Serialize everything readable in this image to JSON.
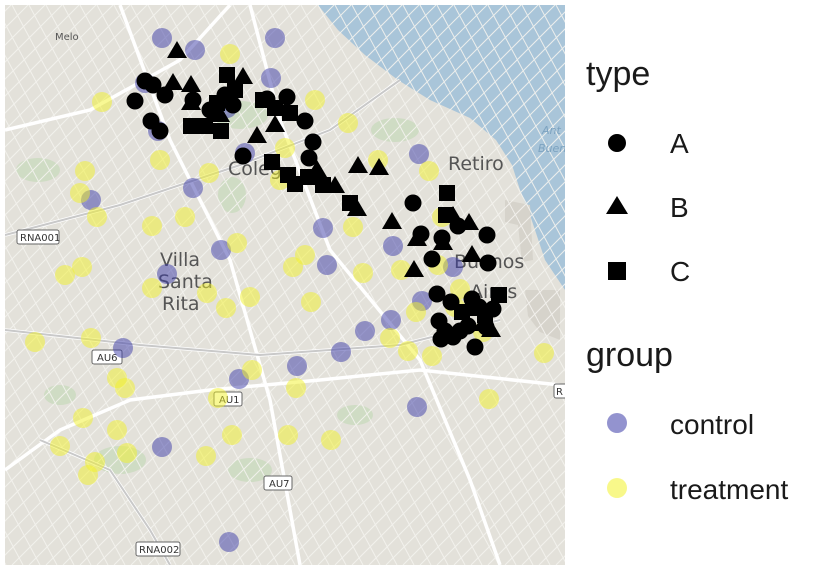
{
  "map": {
    "place_labels": [
      {
        "name": "label-villa-santa-rita",
        "lines": [
          "Villa",
          "Santa",
          "Rita"
        ]
      },
      {
        "name": "label-retiro",
        "lines": [
          "Retiro"
        ]
      },
      {
        "name": "label-buenos-aires",
        "lines": [
          "Buenos",
          "Aires"
        ]
      },
      {
        "name": "label-colegiales",
        "lines": [
          "Coleg"
        ]
      },
      {
        "name": "label-melo",
        "lines": [
          "Melo"
        ]
      }
    ],
    "water_labels": [
      "Ant",
      "Buen"
    ],
    "road_shields": [
      "RNA001",
      "AU6",
      "AU1",
      "AU7",
      "RNA002",
      "R"
    ],
    "colors": {
      "land": "#e3e1da",
      "water": "#a9c5d9",
      "park": "#cfdcc4",
      "road": "#ffffff"
    }
  },
  "legend": {
    "type_title": "type",
    "type_items": [
      {
        "label": "A",
        "shape": "circle"
      },
      {
        "label": "B",
        "shape": "triangle"
      },
      {
        "label": "C",
        "shape": "square"
      }
    ],
    "group_title": "group",
    "group_items": [
      {
        "label": "control",
        "color": "#3b3ba8"
      },
      {
        "label": "treatment",
        "color": "#f2f22a"
      }
    ]
  },
  "chart_data": {
    "type": "scatter",
    "title": "",
    "xlabel": "",
    "ylabel": "",
    "xlim": [
      0,
      560
    ],
    "ylim": [
      0,
      560
    ],
    "groups": [
      {
        "name": "control",
        "color": "#3b3ba8",
        "points": [
          [
            157,
            33
          ],
          [
            190,
            45
          ],
          [
            270,
            33
          ],
          [
            140,
            78
          ],
          [
            266,
            73
          ],
          [
            222,
            103
          ],
          [
            153,
            126
          ],
          [
            240,
            148
          ],
          [
            188,
            183
          ],
          [
            86,
            195
          ],
          [
            318,
            223
          ],
          [
            216,
            245
          ],
          [
            162,
            269
          ],
          [
            322,
            260
          ],
          [
            414,
            149
          ],
          [
            388,
            241
          ],
          [
            417,
            296
          ],
          [
            386,
            315
          ],
          [
            336,
            347
          ],
          [
            292,
            361
          ],
          [
            118,
            343
          ],
          [
            234,
            374
          ],
          [
            412,
            402
          ],
          [
            157,
            442
          ],
          [
            224,
            537
          ],
          [
            448,
            262
          ],
          [
            360,
            326
          ]
        ]
      },
      {
        "name": "treatment",
        "color": "#f2f22a",
        "points": [
          [
            225,
            49
          ],
          [
            97,
            97
          ],
          [
            310,
            95
          ],
          [
            343,
            118
          ],
          [
            280,
            143
          ],
          [
            155,
            155
          ],
          [
            80,
            166
          ],
          [
            204,
            168
          ],
          [
            275,
            175
          ],
          [
            424,
            166
          ],
          [
            373,
            155
          ],
          [
            75,
            188
          ],
          [
            92,
            212
          ],
          [
            147,
            221
          ],
          [
            180,
            212
          ],
          [
            232,
            238
          ],
          [
            348,
            222
          ],
          [
            437,
            212
          ],
          [
            300,
            250
          ],
          [
            358,
            268
          ],
          [
            288,
            262
          ],
          [
            60,
            270
          ],
          [
            77,
            262
          ],
          [
            147,
            283
          ],
          [
            202,
            288
          ],
          [
            221,
            303
          ],
          [
            245,
            292
          ],
          [
            306,
            297
          ],
          [
            396,
            265
          ],
          [
            433,
            260
          ],
          [
            411,
            307
          ],
          [
            450,
            302
          ],
          [
            385,
            333
          ],
          [
            403,
            346
          ],
          [
            427,
            351
          ],
          [
            478,
            327
          ],
          [
            30,
            337
          ],
          [
            86,
            333
          ],
          [
            247,
            365
          ],
          [
            112,
            373
          ],
          [
            120,
            383
          ],
          [
            291,
            383
          ],
          [
            213,
            393
          ],
          [
            484,
            394
          ],
          [
            78,
            413
          ],
          [
            55,
            441
          ],
          [
            90,
            457
          ],
          [
            83,
            470
          ],
          [
            112,
            425
          ],
          [
            122,
            448
          ],
          [
            227,
            430
          ],
          [
            283,
            430
          ],
          [
            326,
            435
          ],
          [
            201,
            451
          ],
          [
            539,
            348
          ],
          [
            455,
            284
          ]
        ]
      }
    ],
    "types": [
      {
        "name": "A",
        "shape": "circle",
        "points": [
          [
            140,
            76
          ],
          [
            148,
            80
          ],
          [
            130,
            96
          ],
          [
            160,
            90
          ],
          [
            188,
            95
          ],
          [
            205,
            105
          ],
          [
            220,
            90
          ],
          [
            228,
            100
          ],
          [
            262,
            94
          ],
          [
            282,
            92
          ],
          [
            300,
            116
          ],
          [
            308,
            137
          ],
          [
            304,
            153
          ],
          [
            238,
            151
          ],
          [
            146,
            116
          ],
          [
            155,
            126
          ],
          [
            408,
            198
          ],
          [
            416,
            229
          ],
          [
            427,
            254
          ],
          [
            437,
            233
          ],
          [
            453,
            221
          ],
          [
            482,
            230
          ],
          [
            483,
            258
          ],
          [
            432,
            289
          ],
          [
            446,
            297
          ],
          [
            467,
            294
          ],
          [
            474,
            302
          ],
          [
            488,
            304
          ],
          [
            434,
            316
          ],
          [
            440,
            326
          ],
          [
            448,
            332
          ],
          [
            455,
            326
          ],
          [
            463,
            321
          ],
          [
            470,
            342
          ],
          [
            481,
            322
          ],
          [
            436,
            334
          ]
        ]
      },
      {
        "name": "B",
        "shape": "triangle",
        "points": [
          [
            172,
            46
          ],
          [
            168,
            78
          ],
          [
            186,
            80
          ],
          [
            186,
            98
          ],
          [
            215,
            110
          ],
          [
            238,
            72
          ],
          [
            252,
            131
          ],
          [
            270,
            120
          ],
          [
            312,
            165
          ],
          [
            353,
            161
          ],
          [
            374,
            163
          ],
          [
            330,
            181
          ],
          [
            352,
            204
          ],
          [
            387,
            217
          ],
          [
            412,
            234
          ],
          [
            438,
            238
          ],
          [
            448,
            211
          ],
          [
            464,
            218
          ],
          [
            467,
            250
          ],
          [
            409,
            265
          ],
          [
            486,
            325
          ],
          [
            478,
            319
          ]
        ]
      },
      {
        "name": "C",
        "shape": "square",
        "points": [
          [
            222,
            70
          ],
          [
            230,
            85
          ],
          [
            212,
            98
          ],
          [
            186,
            121
          ],
          [
            200,
            121
          ],
          [
            216,
            126
          ],
          [
            258,
            95
          ],
          [
            270,
            103
          ],
          [
            285,
            108
          ],
          [
            267,
            157
          ],
          [
            283,
            170
          ],
          [
            290,
            179
          ],
          [
            303,
            172
          ],
          [
            318,
            180
          ],
          [
            345,
            198
          ],
          [
            442,
            188
          ],
          [
            441,
            210
          ],
          [
            494,
            290
          ],
          [
            468,
            303
          ],
          [
            457,
            307
          ],
          [
            480,
            310
          ]
        ]
      }
    ]
  }
}
